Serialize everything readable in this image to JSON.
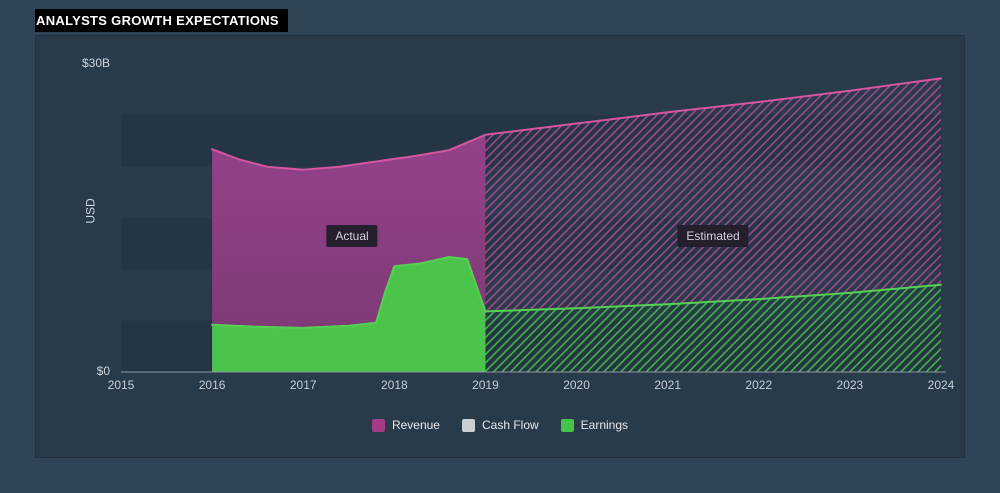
{
  "title": "ANALYSTS GROWTH EXPECTATIONS",
  "axis": {
    "y_top_label": "$30B",
    "y_zero_label": "$0",
    "y_title": "USD"
  },
  "annotations": {
    "actual": "Actual",
    "estimated": "Estimated"
  },
  "legend": [
    {
      "label": "Revenue",
      "color": "#a23c88"
    },
    {
      "label": "Cash Flow",
      "color": "#c9ced3"
    },
    {
      "label": "Earnings",
      "color": "#45c545"
    }
  ],
  "colors": {
    "background": "#2f4456",
    "panel": "#293a4b",
    "band_dark": "#253545",
    "revenue_fill_top": "#94428a",
    "revenue_fill_bottom": "#7a3973",
    "revenue_line": "#d4569f",
    "revenue_hatch": "#a84a8f",
    "earnings_fill": "#4cc44c",
    "earnings_line": "#55d052",
    "earnings_hatch": "#42bd45",
    "axis_line": "#8d99a3",
    "tick_text": "#c7ced6"
  },
  "chart_data": {
    "type": "area",
    "title": "ANALYSTS GROWTH EXPECTATIONS",
    "ylabel": "USD",
    "units": "USD billions",
    "ylim": [
      0,
      30
    ],
    "xlim": [
      2015,
      2024
    ],
    "x_ticks": [
      2015,
      2016,
      2017,
      2018,
      2019,
      2020,
      2021,
      2022,
      2023,
      2024
    ],
    "divider_year": 2019,
    "grid": "horizontal-bands",
    "legend_position": "bottom",
    "note": "Solid fill = Actual (2016-2019), hatched fill = Estimated (2019-2024). Cash Flow series is in the legend but not visibly plotted.",
    "series": [
      {
        "name": "Revenue",
        "actual": [
          [
            2016,
            21.7
          ],
          [
            2016.3,
            20.7
          ],
          [
            2016.6,
            20.0
          ],
          [
            2017,
            19.7
          ],
          [
            2017.4,
            20.0
          ],
          [
            2017.8,
            20.5
          ],
          [
            2018.2,
            21.0
          ],
          [
            2018.6,
            21.6
          ],
          [
            2019,
            23.1
          ]
        ],
        "estimated": [
          [
            2019,
            23.1
          ],
          [
            2020,
            24.2
          ],
          [
            2021,
            25.3
          ],
          [
            2022,
            26.3
          ],
          [
            2023,
            27.4
          ],
          [
            2024,
            28.6
          ]
        ]
      },
      {
        "name": "Earnings",
        "actual": [
          [
            2016,
            4.6
          ],
          [
            2016.5,
            4.4
          ],
          [
            2017,
            4.3
          ],
          [
            2017.5,
            4.5
          ],
          [
            2017.8,
            4.8
          ],
          [
            2017.9,
            7.8
          ],
          [
            2018,
            10.3
          ],
          [
            2018.3,
            10.6
          ],
          [
            2018.6,
            11.2
          ],
          [
            2018.8,
            11.0
          ],
          [
            2019,
            5.9
          ]
        ],
        "estimated": [
          [
            2019,
            5.9
          ],
          [
            2020,
            6.2
          ],
          [
            2021,
            6.6
          ],
          [
            2022,
            7.1
          ],
          [
            2023,
            7.7
          ],
          [
            2024,
            8.5
          ]
        ]
      },
      {
        "name": "Cash Flow",
        "actual": [],
        "estimated": []
      }
    ]
  }
}
